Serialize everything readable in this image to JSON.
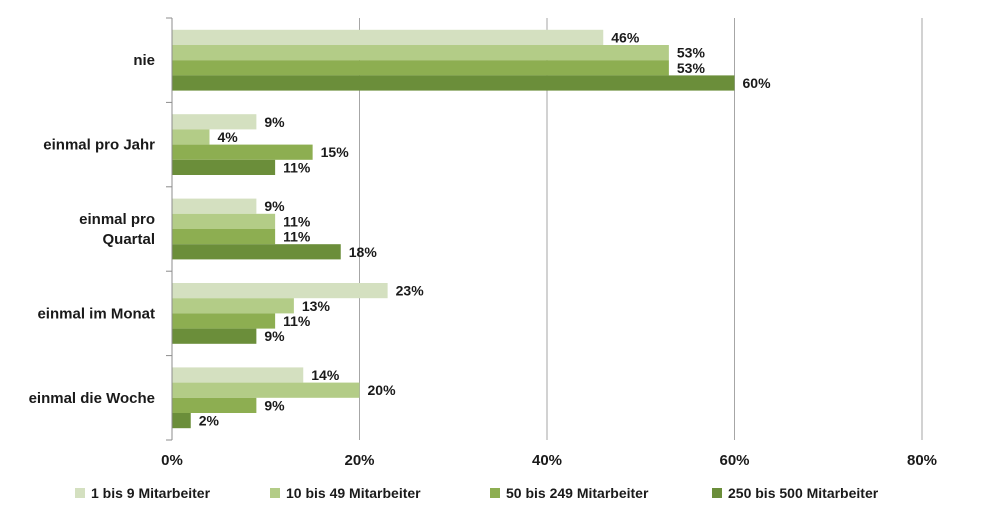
{
  "chart_data": {
    "type": "bar",
    "orientation": "horizontal",
    "categories": [
      "nie",
      "einmal pro Jahr",
      "einmal pro Quartal",
      "einmal im Monat",
      "einmal die Woche"
    ],
    "category_lines": [
      [
        "nie"
      ],
      [
        "einmal pro Jahr"
      ],
      [
        "einmal pro",
        "Quartal"
      ],
      [
        "einmal im Monat"
      ],
      [
        "einmal die Woche"
      ]
    ],
    "series": [
      {
        "name": "1 bis 9 Mitarbeiter",
        "values": [
          46,
          9,
          9,
          23,
          14
        ],
        "color": "#d4e0c0"
      },
      {
        "name": "10 bis 49 Mitarbeiter",
        "values": [
          53,
          4,
          11,
          13,
          20
        ],
        "color": "#b3cc87"
      },
      {
        "name": "50 bis 249 Mitarbeiter",
        "values": [
          53,
          15,
          11,
          11,
          9
        ],
        "color": "#8dae51"
      },
      {
        "name": "250 bis 500 Mitarbeiter",
        "values": [
          60,
          11,
          18,
          9,
          2
        ],
        "color": "#6b8e3a"
      }
    ],
    "xlim": [
      0,
      80
    ],
    "xticks": [
      "0%",
      "20%",
      "40%",
      "60%",
      "80%"
    ],
    "xlabel": "",
    "ylabel": "",
    "title": "",
    "value_suffix": "%",
    "grid": true,
    "legend_position": "bottom"
  }
}
